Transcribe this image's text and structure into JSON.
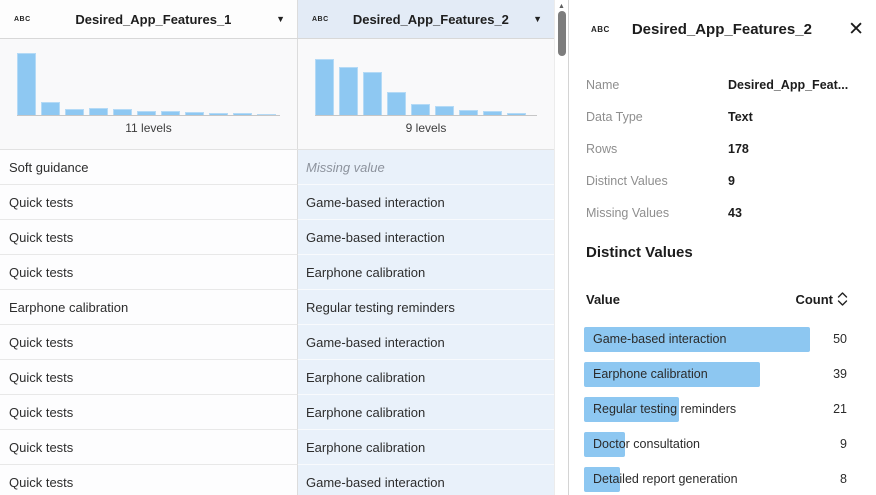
{
  "icons": {
    "dropdown": "▼",
    "close": "✕",
    "scroll_up": "▲",
    "text_type": "ABC"
  },
  "colors": {
    "bar_blue": "#8dc7f1",
    "selected_column_cell_bg": "#e9f1fa",
    "selected_header_bg": "#e3ebf6",
    "histogram_bg": "#f9f9fa"
  },
  "columns": [
    {
      "name": "Desired_App_Features_1",
      "type_icon": "ABC",
      "levels_label": "11 levels",
      "histogram_heights": [
        62,
        13,
        6,
        7,
        6,
        4,
        4,
        3,
        2,
        2,
        1
      ],
      "selected": false
    },
    {
      "name": "Desired_App_Features_2",
      "type_icon": "ABC",
      "levels_label": "9 levels",
      "histogram_heights": [
        56,
        48,
        43,
        23,
        11,
        9,
        5,
        4,
        2
      ],
      "selected": true
    }
  ],
  "rows": [
    {
      "col1": "Soft guidance",
      "col2": "Missing value",
      "missing": true
    },
    {
      "col1": "Quick tests",
      "col2": "Game-based interaction",
      "missing": false
    },
    {
      "col1": "Quick tests",
      "col2": "Game-based interaction",
      "missing": false
    },
    {
      "col1": "Quick tests",
      "col2": "Earphone calibration",
      "missing": false
    },
    {
      "col1": "Earphone calibration",
      "col2": "Regular testing reminders",
      "missing": false
    },
    {
      "col1": "Quick tests",
      "col2": "Game-based interaction",
      "missing": false
    },
    {
      "col1": "Quick tests",
      "col2": "Earphone calibration",
      "missing": false
    },
    {
      "col1": "Quick tests",
      "col2": "Earphone calibration",
      "missing": false
    },
    {
      "col1": "Quick tests",
      "col2": "Earphone calibration",
      "missing": false
    },
    {
      "col1": "Quick tests",
      "col2": "Game-based interaction",
      "missing": false
    }
  ],
  "panel": {
    "title": "Desired_App_Features_2",
    "type_icon": "ABC",
    "details": [
      {
        "label": "Name",
        "value": "Desired_App_Feat..."
      },
      {
        "label": "Data Type",
        "value": "Text"
      },
      {
        "label": "Rows",
        "value": "178"
      },
      {
        "label": "Distinct Values",
        "value": "9"
      },
      {
        "label": "Missing Values",
        "value": "43"
      }
    ],
    "distinct_heading": "Distinct Values",
    "value_header": "Value",
    "count_header": "Count",
    "max_count": 50,
    "max_bar_width": 226,
    "distinct_values": [
      {
        "value": "Game-based interaction",
        "count": 50
      },
      {
        "value": "Earphone calibration",
        "count": 39
      },
      {
        "value": "Regular testing reminders",
        "count": 21
      },
      {
        "value": "Doctor consultation",
        "count": 9
      },
      {
        "value": "Detailed report generation",
        "count": 8
      }
    ]
  }
}
